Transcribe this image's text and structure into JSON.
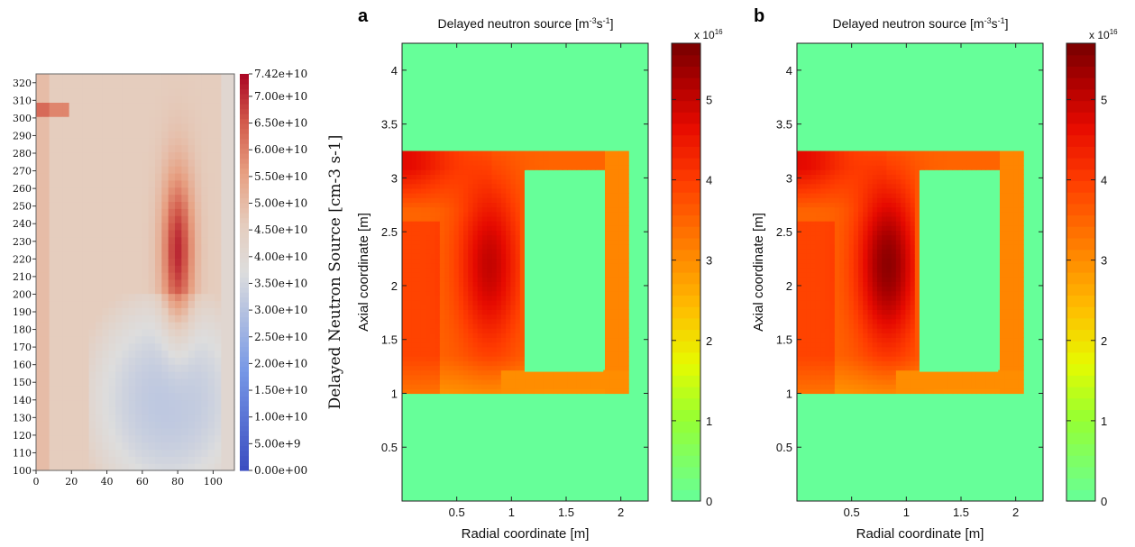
{
  "left_panel": {
    "type": "heatmap",
    "x_ticks": [
      0,
      20,
      40,
      60,
      80,
      100
    ],
    "y_ticks": [
      100,
      110,
      120,
      130,
      140,
      150,
      160,
      170,
      180,
      190,
      200,
      210,
      220,
      230,
      240,
      250,
      260,
      270,
      280,
      290,
      300,
      310,
      320
    ],
    "xlim": [
      0,
      112
    ],
    "ylim": [
      100,
      325
    ],
    "colorbar": {
      "label": "Delayed Neutron Source [cm-3 s-1]",
      "ticks": [
        "0.00e+00",
        "5.00e+9",
        "1.00e+10",
        "1.50e+10",
        "2.00e+10",
        "2.50e+10",
        "3.00e+10",
        "3.50e+10",
        "4.00e+10",
        "4.50e+10",
        "5.00e+10",
        "5.50e+10",
        "6.00e+10",
        "6.50e+10",
        "7.00e+10",
        "7.42e+10"
      ],
      "min": 0,
      "max": 74200000000.0,
      "colormap": "coolwarm"
    }
  },
  "chart_data": [
    {
      "panel_letter": "a",
      "type": "heatmap",
      "title_base": "Delayed neutron source [m",
      "title_sup1": "-3",
      "title_mid": "s",
      "title_sup2": "-1",
      "title_end": "]",
      "xlabel": "Radial coordinate [m]",
      "ylabel": "Axial coordinate [m]",
      "xlim": [
        0,
        2.25
      ],
      "ylim": [
        0,
        4.25
      ],
      "x_ticks": [
        "0.5",
        "1",
        "1.5",
        "2"
      ],
      "y_ticks": [
        "0.5",
        "1",
        "1.5",
        "2",
        "2.5",
        "3",
        "3.5",
        "4"
      ],
      "colorbar": {
        "multiplier_base": "x 10",
        "multiplier_exp": "16",
        "ticks": [
          "0",
          "1",
          "2",
          "3",
          "4",
          "5"
        ],
        "min": 0,
        "max": 5.7,
        "colormap": "jet-like"
      },
      "fuel_region": {
        "r": [
          0,
          2.07
        ],
        "z": [
          1.0,
          3.25
        ]
      },
      "inner_reflector": {
        "r": [
          1.12,
          1.84
        ],
        "z": [
          1.2,
          3.07
        ]
      },
      "peak": {
        "r": 0.8,
        "z": 2.2,
        "value": 5.0
      }
    },
    {
      "panel_letter": "b",
      "type": "heatmap",
      "title_base": "Delayed neutron source [m",
      "title_sup1": "-3",
      "title_mid": "s",
      "title_sup2": "-1",
      "title_end": "]",
      "xlabel": "Radial coordinate [m]",
      "ylabel": "Axial coordinate [m]",
      "xlim": [
        0,
        2.25
      ],
      "ylim": [
        0,
        4.25
      ],
      "x_ticks": [
        "0.5",
        "1",
        "1.5",
        "2"
      ],
      "y_ticks": [
        "0.5",
        "1",
        "1.5",
        "2",
        "2.5",
        "3",
        "3.5",
        "4"
      ],
      "colorbar": {
        "multiplier_base": "x 10",
        "multiplier_exp": "16",
        "ticks": [
          "0",
          "1",
          "2",
          "3",
          "4",
          "5"
        ],
        "min": 0,
        "max": 5.7,
        "colormap": "jet-like"
      },
      "fuel_region": {
        "r": [
          0,
          2.07
        ],
        "z": [
          1.0,
          3.25
        ]
      },
      "inner_reflector": {
        "r": [
          1.12,
          1.84
        ],
        "z": [
          1.2,
          3.07
        ]
      },
      "peak": {
        "r": 0.83,
        "z": 2.2,
        "value": 5.5
      }
    }
  ]
}
